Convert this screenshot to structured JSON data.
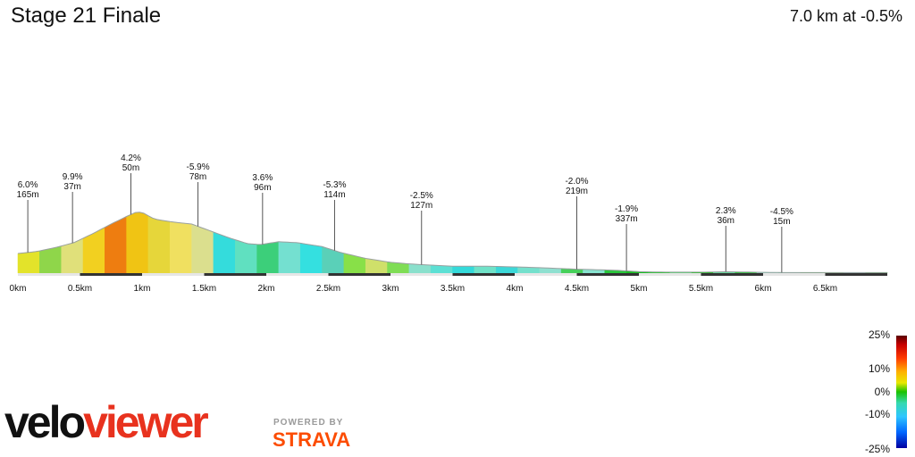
{
  "header": {
    "title": "Stage 21 Finale",
    "summary": "7.0 km at -0.5%"
  },
  "legend": {
    "labels": [
      "25%",
      "10%",
      "0%",
      "-10%",
      "-25%"
    ]
  },
  "branding": {
    "velo_black": "velo",
    "velo_red": "viewer",
    "powered": "POWERED BY",
    "strava": "STRAVA"
  },
  "colors": {
    "axis_band": "#333333",
    "logo_red": "#e8321e",
    "strava_orange": "#fc4c02"
  },
  "chart_data": {
    "type": "area",
    "title": "Stage 21 Finale",
    "xlabel": "",
    "ylabel": "",
    "x_unit": "km",
    "xlim": [
      0,
      7.0
    ],
    "xticks": [
      {
        "x": 0,
        "label": "0km"
      },
      {
        "x": 0.5,
        "label": "0.5km"
      },
      {
        "x": 1.0,
        "label": "1km"
      },
      {
        "x": 1.5,
        "label": "1.5km"
      },
      {
        "x": 2.0,
        "label": "2km"
      },
      {
        "x": 2.5,
        "label": "2.5km"
      },
      {
        "x": 3.0,
        "label": "3km"
      },
      {
        "x": 3.5,
        "label": "3.5km"
      },
      {
        "x": 4.0,
        "label": "4km"
      },
      {
        "x": 4.5,
        "label": "4.5km"
      },
      {
        "x": 5.0,
        "label": "5km"
      },
      {
        "x": 5.5,
        "label": "5.5km"
      },
      {
        "x": 6.0,
        "label": "6km"
      },
      {
        "x": 6.5,
        "label": "6.5km"
      }
    ],
    "profile_relative": [
      [
        0,
        0.2
      ],
      [
        0.15,
        0.22
      ],
      [
        0.3,
        0.26
      ],
      [
        0.45,
        0.31
      ],
      [
        0.6,
        0.4
      ],
      [
        0.75,
        0.5
      ],
      [
        0.88,
        0.58
      ],
      [
        0.95,
        0.62
      ],
      [
        1.0,
        0.62
      ],
      [
        1.1,
        0.55
      ],
      [
        1.25,
        0.52
      ],
      [
        1.4,
        0.5
      ],
      [
        1.55,
        0.43
      ],
      [
        1.7,
        0.36
      ],
      [
        1.85,
        0.3
      ],
      [
        1.95,
        0.29
      ],
      [
        2.1,
        0.32
      ],
      [
        2.25,
        0.31
      ],
      [
        2.45,
        0.27
      ],
      [
        2.6,
        0.21
      ],
      [
        2.8,
        0.15
      ],
      [
        3.0,
        0.11
      ],
      [
        3.2,
        0.09
      ],
      [
        3.5,
        0.07
      ],
      [
        3.8,
        0.07
      ],
      [
        4.1,
        0.06
      ],
      [
        4.5,
        0.04
      ],
      [
        4.8,
        0.03
      ],
      [
        5.0,
        0.015
      ],
      [
        5.2,
        0.01
      ],
      [
        5.55,
        0.01
      ],
      [
        5.7,
        0.015
      ],
      [
        5.9,
        0.01
      ],
      [
        6.2,
        0.005
      ],
      [
        6.5,
        0.005
      ],
      [
        7.0,
        0.005
      ]
    ],
    "segment_colors": [
      "#e3e32a",
      "#8fd64a",
      "#e0e07a",
      "#f2d020",
      "#ee7d10",
      "#f0c414",
      "#e6d63a",
      "#f0e060",
      "#dbdf8e",
      "#34dcdc",
      "#60e0c0",
      "#3ccf7a",
      "#74e0d0",
      "#34e0e0",
      "#5ad0b8",
      "#88e048",
      "#cfe06a",
      "#7fdd55",
      "#8ae0cc",
      "#5ce0d4",
      "#34dada",
      "#70e2c8",
      "#3cd8d8",
      "#74e0cc",
      "#8fe0d0",
      "#46d05a",
      "#88e4d0",
      "#28c83a",
      "#16c020",
      "#20c828",
      "#56d870",
      "#18c018",
      "#6adca0",
      "#28c838",
      "#8fe0c8",
      "#6ad8a8",
      "#2ec838",
      "#6cdc5c",
      "#88e0cc",
      "#22c828"
    ],
    "annotations": [
      {
        "x": 0.08,
        "gradient": "6.0%",
        "length": "165m"
      },
      {
        "x": 0.44,
        "gradient": "9.9%",
        "length": "37m"
      },
      {
        "x": 0.91,
        "gradient": "4.2%",
        "length": "50m"
      },
      {
        "x": 1.45,
        "gradient": "-5.9%",
        "length": "78m"
      },
      {
        "x": 1.97,
        "gradient": "3.6%",
        "length": "96m"
      },
      {
        "x": 2.55,
        "gradient": "-5.3%",
        "length": "114m"
      },
      {
        "x": 3.25,
        "gradient": "-2.5%",
        "length": "127m"
      },
      {
        "x": 4.5,
        "gradient": "-2.0%",
        "length": "219m"
      },
      {
        "x": 4.9,
        "gradient": "-1.9%",
        "length": "337m"
      },
      {
        "x": 5.7,
        "gradient": "2.3%",
        "length": "36m"
      },
      {
        "x": 6.15,
        "gradient": "-4.5%",
        "length": "15m"
      }
    ]
  }
}
